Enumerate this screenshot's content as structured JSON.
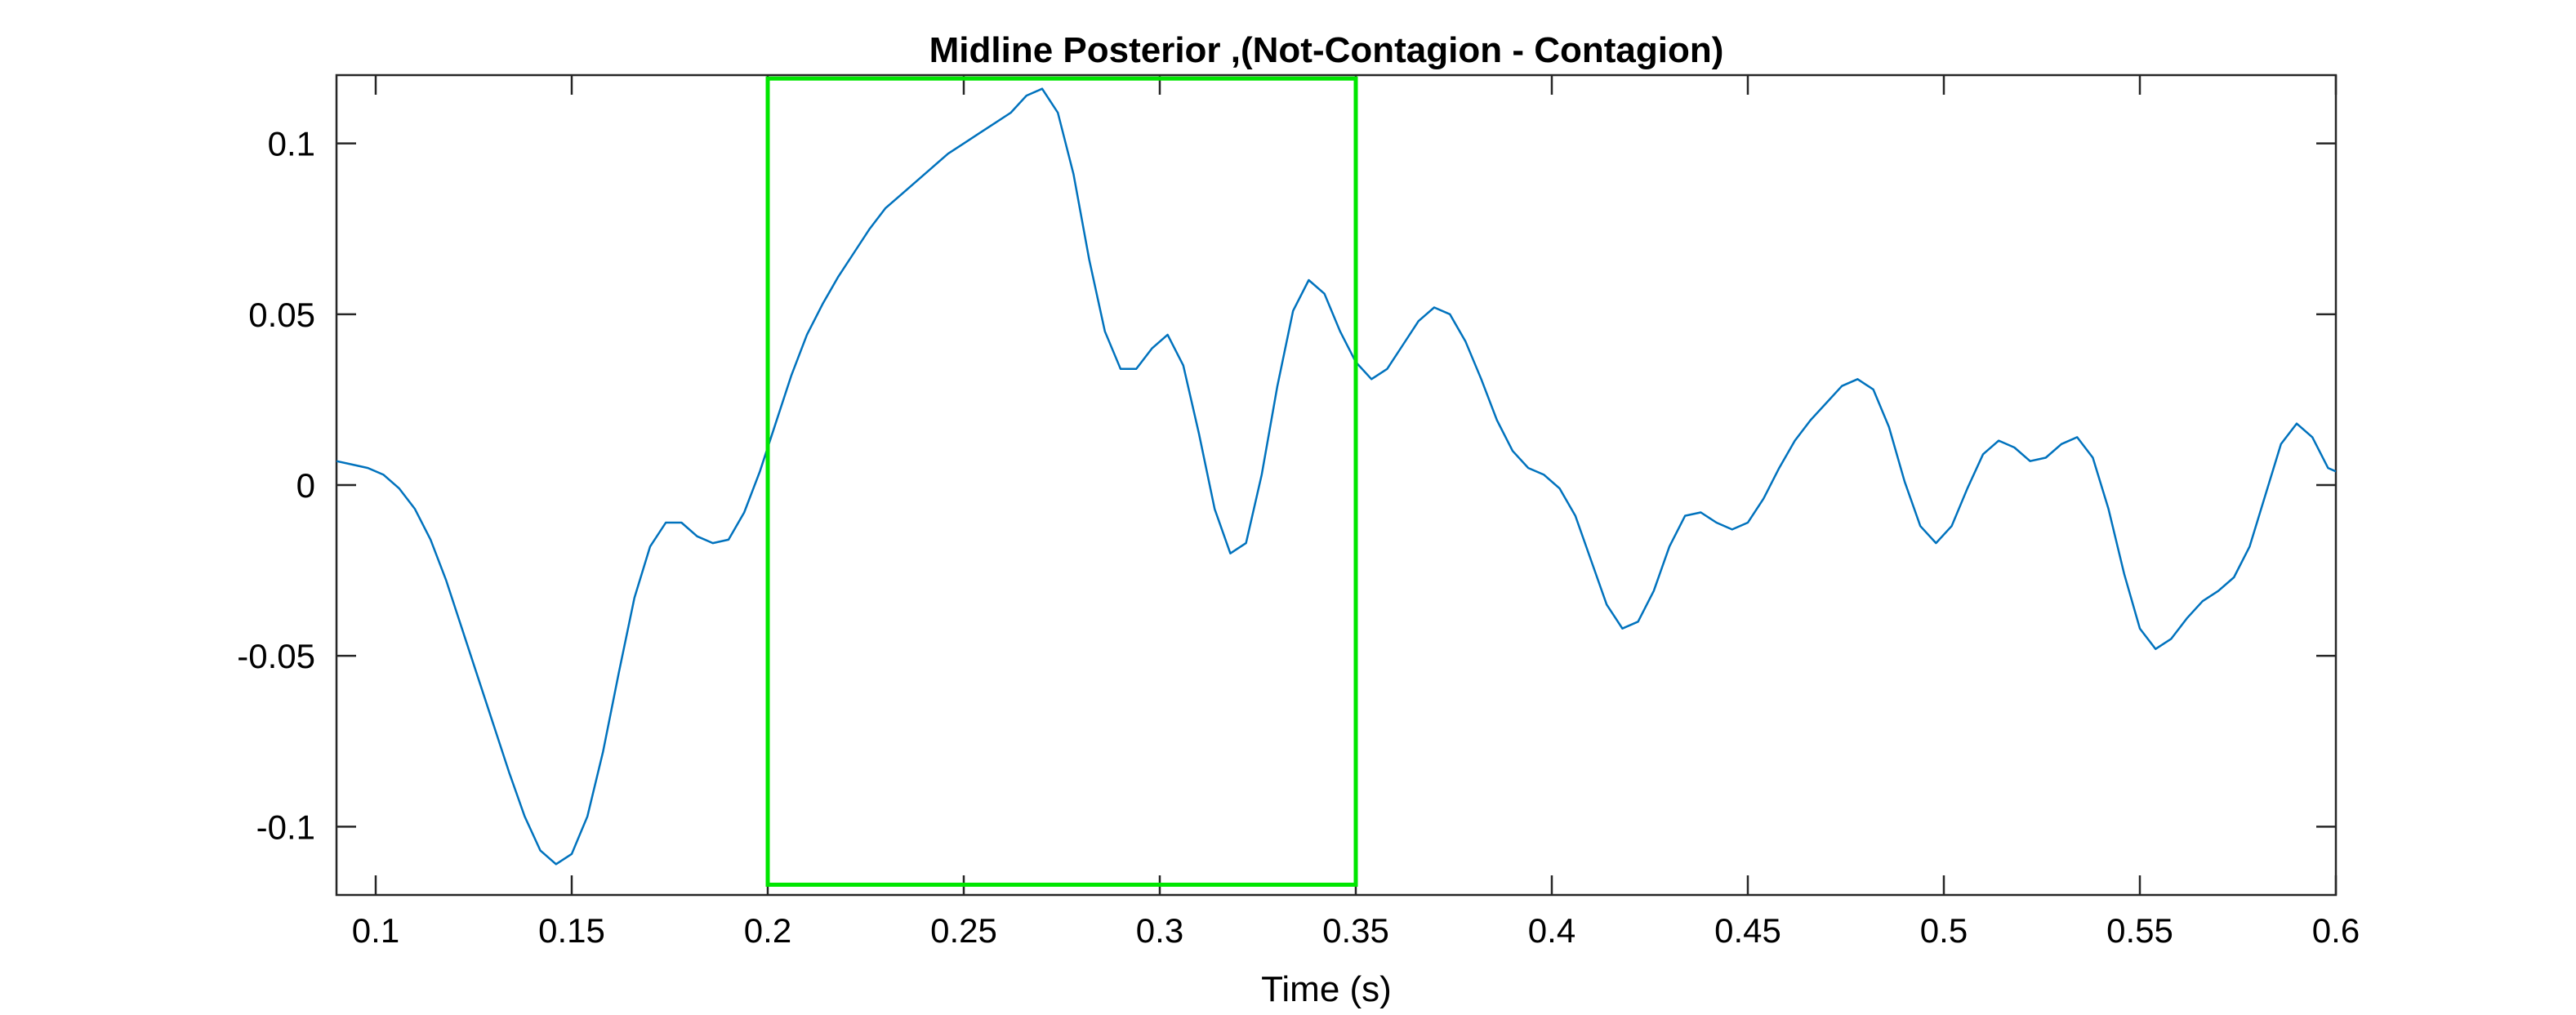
{
  "chart_data": {
    "type": "line",
    "title": "Midline Posterior ,(Not-Contagion - Contagion)",
    "xlabel": "Time (s)",
    "ylabel": "",
    "xlim": [
      0.09,
      0.6
    ],
    "ylim": [
      -0.12,
      0.12
    ],
    "grid": false,
    "box": true,
    "x_ticks": [
      0.1,
      0.15,
      0.2,
      0.25,
      0.3,
      0.35,
      0.4,
      0.45,
      0.5,
      0.55,
      0.6
    ],
    "x_tick_labels": [
      "0.1",
      "0.15",
      "0.2",
      "0.25",
      "0.3",
      "0.35",
      "0.4",
      "0.45",
      "0.5",
      "0.55",
      "0.6"
    ],
    "y_ticks": [
      -0.1,
      -0.05,
      0,
      0.05,
      0.1
    ],
    "y_tick_labels": [
      "-0.1",
      "-0.05",
      "0",
      "0.05",
      "0.1"
    ],
    "series": [
      {
        "color": "#0072BD",
        "x": [
          0.09,
          0.094,
          0.098,
          0.102,
          0.106,
          0.11,
          0.114,
          0.118,
          0.122,
          0.126,
          0.13,
          0.134,
          0.138,
          0.142,
          0.146,
          0.15,
          0.154,
          0.158,
          0.162,
          0.166,
          0.17,
          0.174,
          0.178,
          0.182,
          0.186,
          0.19,
          0.194,
          0.198,
          0.202,
          0.206,
          0.21,
          0.214,
          0.218,
          0.222,
          0.226,
          0.23,
          0.234,
          0.238,
          0.242,
          0.246,
          0.25,
          0.254,
          0.258,
          0.262,
          0.266,
          0.27,
          0.274,
          0.278,
          0.282,
          0.286,
          0.29,
          0.294,
          0.298,
          0.302,
          0.306,
          0.31,
          0.314,
          0.318,
          0.322,
          0.326,
          0.33,
          0.334,
          0.338,
          0.342,
          0.346,
          0.35,
          0.354,
          0.358,
          0.362,
          0.366,
          0.37,
          0.374,
          0.378,
          0.382,
          0.386,
          0.39,
          0.394,
          0.398,
          0.402,
          0.406,
          0.41,
          0.414,
          0.418,
          0.422,
          0.426,
          0.43,
          0.434,
          0.438,
          0.442,
          0.446,
          0.45,
          0.454,
          0.458,
          0.462,
          0.466,
          0.47,
          0.474,
          0.478,
          0.482,
          0.486,
          0.49,
          0.494,
          0.498,
          0.502,
          0.506,
          0.51,
          0.514,
          0.518,
          0.522,
          0.526,
          0.53,
          0.534,
          0.538,
          0.542,
          0.546,
          0.55,
          0.554,
          0.558,
          0.562,
          0.566,
          0.57,
          0.574,
          0.578,
          0.582,
          0.586,
          0.59,
          0.594,
          0.598,
          0.6
        ],
        "y": [
          0.007,
          0.006,
          0.005,
          0.003,
          -0.001,
          -0.007,
          -0.016,
          -0.028,
          -0.042,
          -0.056,
          -0.07,
          -0.084,
          -0.097,
          -0.107,
          -0.111,
          -0.108,
          -0.097,
          -0.078,
          -0.055,
          -0.033,
          -0.018,
          -0.011,
          -0.011,
          -0.015,
          -0.017,
          -0.016,
          -0.008,
          0.004,
          0.018,
          0.032,
          0.044,
          0.053,
          0.061,
          0.068,
          0.075,
          0.081,
          0.085,
          0.089,
          0.093,
          0.097,
          0.1,
          0.103,
          0.106,
          0.109,
          0.114,
          0.116,
          0.109,
          0.091,
          0.066,
          0.045,
          0.034,
          0.034,
          0.04,
          0.044,
          0.035,
          0.015,
          -0.007,
          -0.02,
          -0.017,
          0.003,
          0.029,
          0.051,
          0.06,
          0.056,
          0.045,
          0.036,
          0.031,
          0.034,
          0.041,
          0.048,
          0.052,
          0.05,
          0.042,
          0.031,
          0.019,
          0.01,
          0.005,
          0.003,
          -0.001,
          -0.009,
          -0.022,
          -0.035,
          -0.042,
          -0.04,
          -0.031,
          -0.018,
          -0.009,
          -0.008,
          -0.011,
          -0.013,
          -0.011,
          -0.004,
          0.005,
          0.013,
          0.019,
          0.024,
          0.029,
          0.031,
          0.028,
          0.017,
          0.001,
          -0.012,
          -0.017,
          -0.012,
          -0.001,
          0.009,
          0.013,
          0.011,
          0.007,
          0.008,
          0.012,
          0.014,
          0.008,
          -0.007,
          -0.026,
          -0.042,
          -0.048,
          -0.045,
          -0.039,
          -0.034,
          -0.031,
          -0.027,
          -0.018,
          -0.003,
          0.012,
          0.018,
          0.014,
          0.005,
          0.004
        ]
      }
    ],
    "highlight_box": {
      "color": "#00E600",
      "x": [
        0.2,
        0.35
      ],
      "y": [
        -0.117,
        0.119
      ]
    }
  }
}
